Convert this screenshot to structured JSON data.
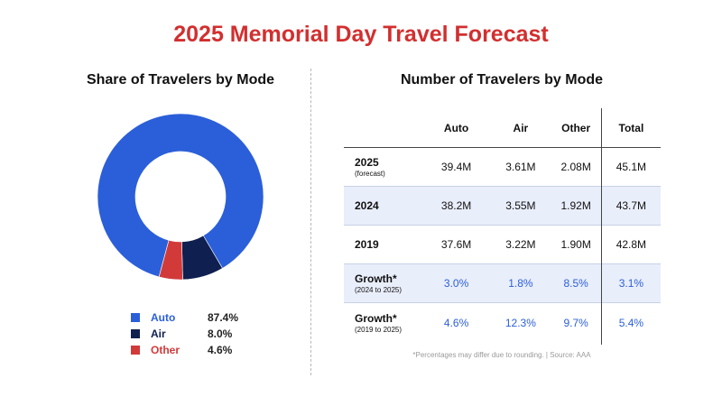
{
  "title": "2025 Memorial Day Travel Forecast",
  "colors": {
    "title": "#d22f2f",
    "auto": "#2b5fd9",
    "air": "#0f1f50",
    "other": "#d23a3a",
    "growth": "#2b5fd9"
  },
  "left_chart_title": "Share of Travelers by Mode",
  "right_table_title": "Number of Travelers by Mode",
  "legend": [
    {
      "label": "Auto",
      "value": "87.4%"
    },
    {
      "label": "Air",
      "value": "8.0%"
    },
    {
      "label": "Other",
      "value": "4.6%"
    }
  ],
  "table": {
    "headers": [
      "Auto",
      "Air",
      "Other",
      "Total"
    ],
    "rows": [
      {
        "label": "2025",
        "sublabel": "(forecast)",
        "auto": "39.4M",
        "air": "3.61M",
        "other": "2.08M",
        "total": "45.1M"
      },
      {
        "label": "2024",
        "sublabel": "",
        "auto": "38.2M",
        "air": "3.55M",
        "other": "1.92M",
        "total": "43.7M"
      },
      {
        "label": "2019",
        "sublabel": "",
        "auto": "37.6M",
        "air": "3.22M",
        "other": "1.90M",
        "total": "42.8M"
      },
      {
        "label": "Growth*",
        "sublabel": "(2024 to 2025)",
        "auto": "3.0%",
        "air": "1.8%",
        "other": "8.5%",
        "total": "3.1%"
      },
      {
        "label": "Growth*",
        "sublabel": "(2019 to 2025)",
        "auto": "4.6%",
        "air": "12.3%",
        "other": "9.7%",
        "total": "5.4%"
      }
    ]
  },
  "footnote": "*Percentages may differ due to rounding. | Source: AAA",
  "chart_data": {
    "type": "pie",
    "donut": true,
    "title": "Share of Travelers by Mode",
    "categories": [
      "Auto",
      "Air",
      "Other"
    ],
    "values": [
      87.4,
      8.0,
      4.6
    ],
    "legend_position": "bottom"
  }
}
